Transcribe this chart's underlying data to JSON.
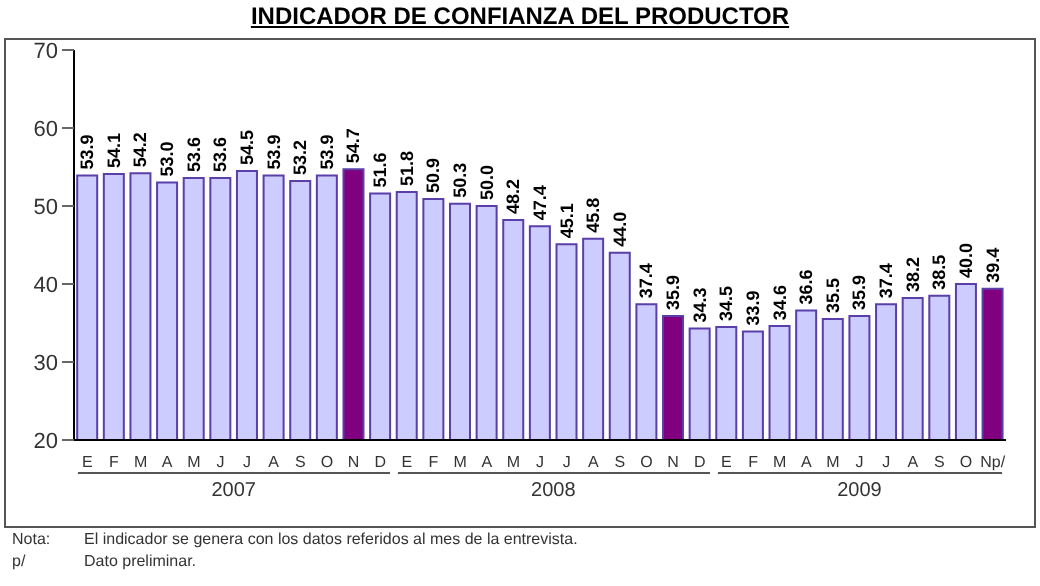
{
  "chart_data": {
    "type": "bar",
    "title": "INDICADOR DE CONFIANZA DEL PRODUCTOR",
    "categories": [
      "E",
      "F",
      "M",
      "A",
      "M",
      "J",
      "J",
      "A",
      "S",
      "O",
      "N",
      "D",
      "E",
      "F",
      "M",
      "A",
      "M",
      "J",
      "J",
      "A",
      "S",
      "O",
      "N",
      "D",
      "E",
      "F",
      "M",
      "A",
      "M",
      "J",
      "J",
      "A",
      "S",
      "O",
      "Np/"
    ],
    "values": [
      53.9,
      54.1,
      54.2,
      53.0,
      53.6,
      53.6,
      54.5,
      53.9,
      53.2,
      53.9,
      54.7,
      51.6,
      51.8,
      50.9,
      50.3,
      50.0,
      48.2,
      47.4,
      45.1,
      45.8,
      44.0,
      37.4,
      35.9,
      34.3,
      34.5,
      33.9,
      34.6,
      36.6,
      35.5,
      35.9,
      37.4,
      38.2,
      38.5,
      40.0,
      39.4
    ],
    "colors": [
      "#ccccff",
      "#ccccff",
      "#ccccff",
      "#ccccff",
      "#ccccff",
      "#ccccff",
      "#ccccff",
      "#ccccff",
      "#ccccff",
      "#ccccff",
      "#800080",
      "#ccccff",
      "#ccccff",
      "#ccccff",
      "#ccccff",
      "#ccccff",
      "#ccccff",
      "#ccccff",
      "#ccccff",
      "#ccccff",
      "#ccccff",
      "#ccccff",
      "#800080",
      "#ccccff",
      "#ccccff",
      "#ccccff",
      "#ccccff",
      "#ccccff",
      "#ccccff",
      "#ccccff",
      "#ccccff",
      "#ccccff",
      "#ccccff",
      "#ccccff",
      "#800080"
    ],
    "value_labels": [
      "53.9",
      "54.1",
      "54.2",
      "53.0",
      "53.6",
      "53.6",
      "54.5",
      "53.9",
      "53.2",
      "53.9",
      "54.7",
      "51.6",
      "51.8",
      "50.9",
      "50.3",
      "50.0",
      "48.2",
      "47.4",
      "45.1",
      "45.8",
      "44.0",
      "37.4",
      "35.9",
      "34.3",
      "34.5",
      "33.9",
      "34.6",
      "36.6",
      "35.5",
      "35.9",
      "37.4",
      "38.2",
      "38.5",
      "40.0",
      "39.4"
    ],
    "ylim": [
      20,
      70
    ],
    "yticks": [
      20,
      30,
      40,
      50,
      60,
      70
    ],
    "grid": false,
    "legend": false,
    "annotations": [
      "2007",
      "2008",
      "2009",
      "Nota:\tEl indicador se genera con los datos referidos al mes de la entrevista.",
      "p/\tDato preliminar."
    ]
  }
}
